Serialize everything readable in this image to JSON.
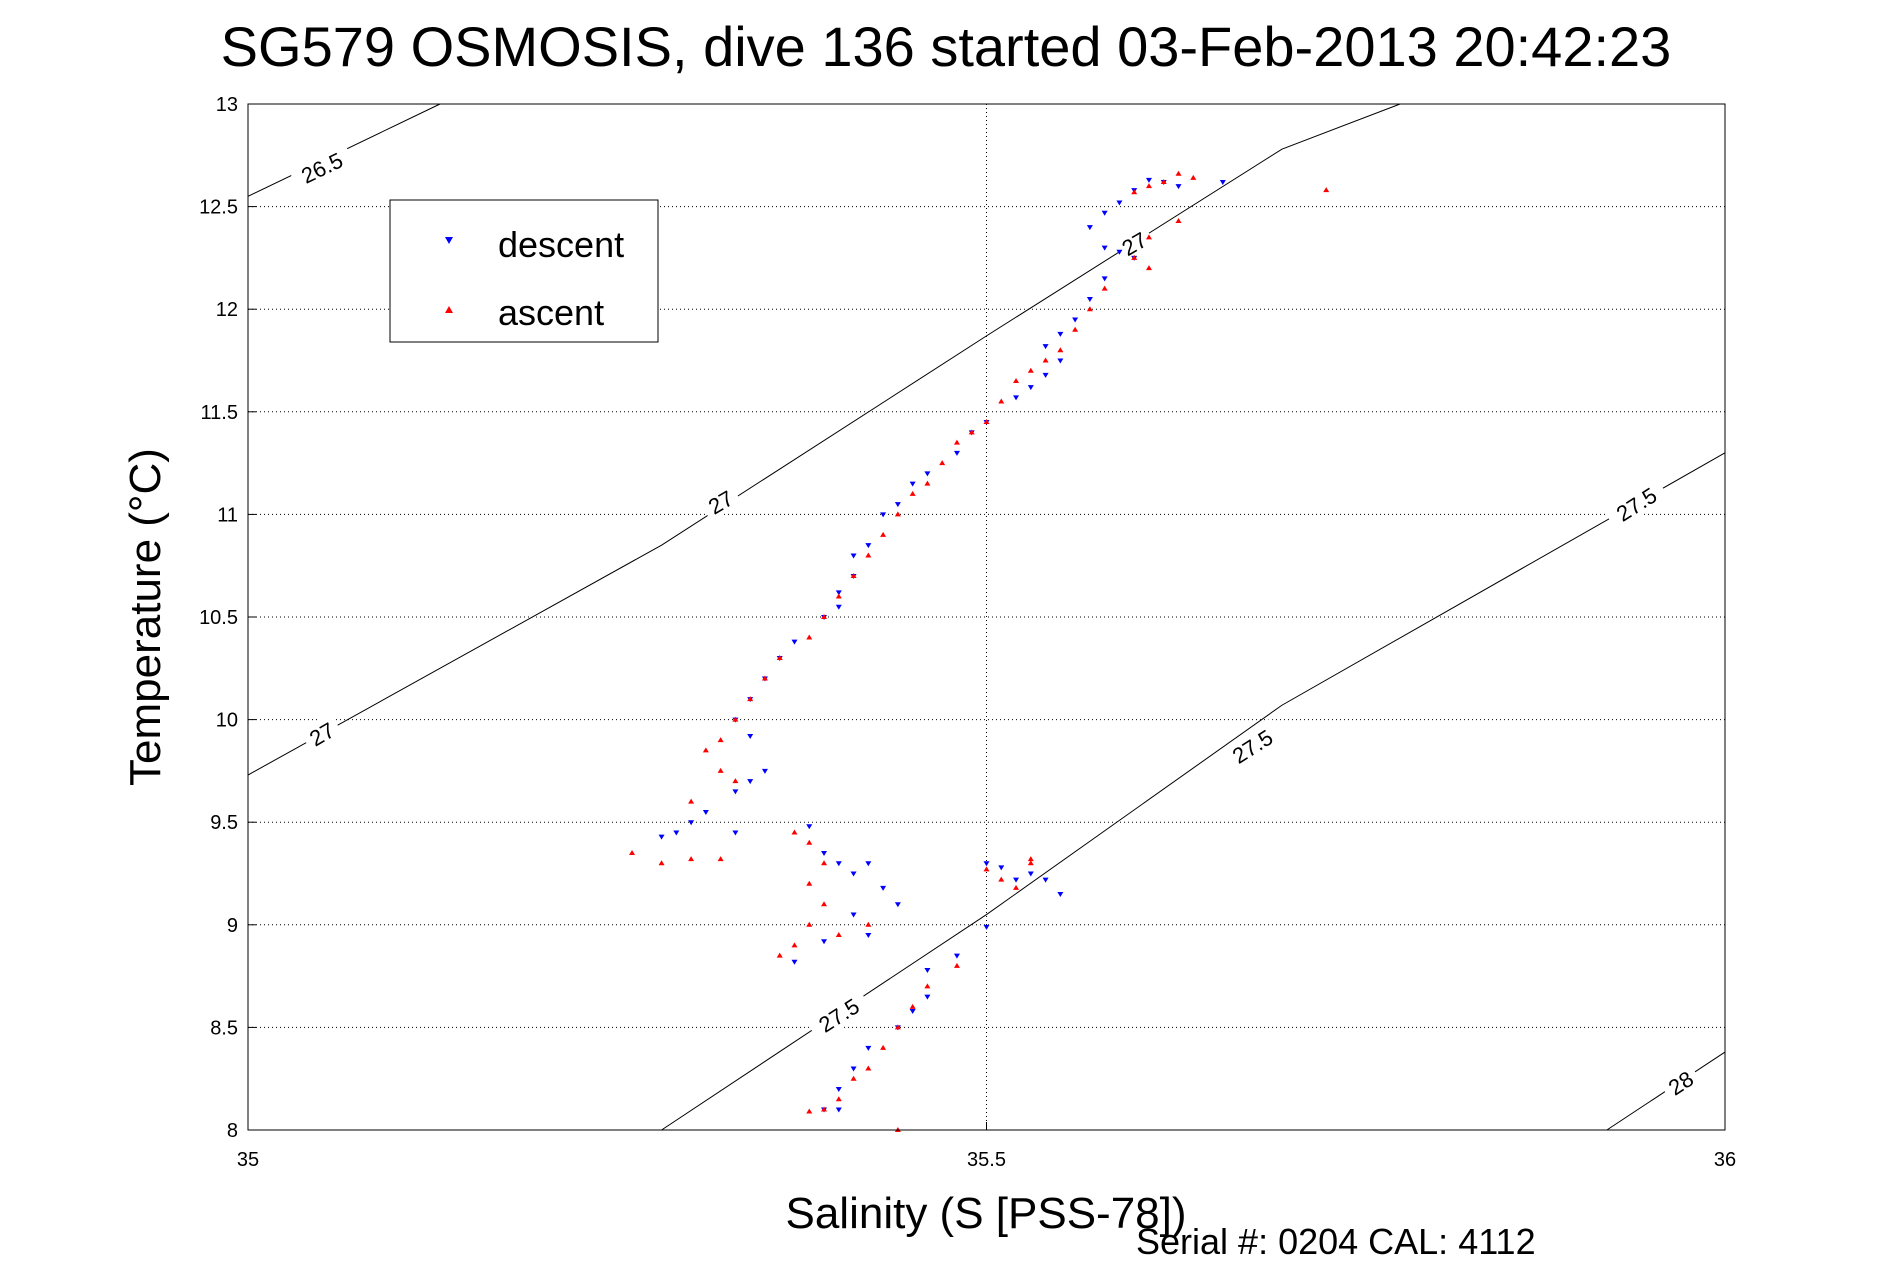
{
  "chart_data": {
    "type": "scatter",
    "title": "SG579 OSMOSIS, dive 136 started 03-Feb-2013 20:42:23",
    "xlabel": "Salinity (S [PSS-78])",
    "ylabel": "Temperature (°C)",
    "footer": "Serial #: 0204  CAL: 4112",
    "xlim": [
      35,
      36
    ],
    "ylim": [
      8,
      13
    ],
    "xticks": [
      "35",
      "35.5",
      "36"
    ],
    "yticks": [
      "8",
      "8.5",
      "9",
      "9.5",
      "10",
      "10.5",
      "11",
      "11.5",
      "12",
      "12.5",
      "13"
    ],
    "grid": "dotted",
    "legend_position": "top-left",
    "density_contours": [
      {
        "sigma": "26.5",
        "points": [
          [
            35.0,
            12.55
          ],
          [
            35.13,
            13.0
          ]
        ],
        "label_points": [
          [
            35.05,
            12.69
          ]
        ]
      },
      {
        "sigma": "27",
        "points": [
          [
            35.0,
            9.73
          ],
          [
            35.28,
            10.85
          ],
          [
            35.5,
            11.87
          ],
          [
            35.7,
            12.78
          ],
          [
            35.78,
            13.0
          ]
        ],
        "label_points": [
          [
            35.05,
            9.93
          ],
          [
            35.32,
            11.06
          ],
          [
            35.6,
            12.32
          ]
        ]
      },
      {
        "sigma": "27.5",
        "points": [
          [
            35.28,
            8.0
          ],
          [
            35.5,
            9.05
          ],
          [
            35.7,
            10.07
          ],
          [
            36.0,
            11.3
          ]
        ],
        "label_points": [
          [
            35.4,
            8.56
          ],
          [
            35.68,
            9.87
          ],
          [
            35.94,
            11.05
          ]
        ]
      },
      {
        "sigma": "28",
        "points": [
          [
            35.92,
            8.0
          ],
          [
            36.0,
            8.38
          ]
        ],
        "label_points": [
          [
            35.97,
            8.23
          ]
        ]
      }
    ],
    "series": [
      {
        "name": "descent",
        "color": "#0000ff",
        "marker": "triangle-down",
        "points": [
          [
            35.61,
            12.63
          ],
          [
            35.62,
            12.62
          ],
          [
            35.63,
            12.6
          ],
          [
            35.6,
            12.58
          ],
          [
            35.59,
            12.52
          ],
          [
            35.58,
            12.47
          ],
          [
            35.66,
            12.62
          ],
          [
            35.57,
            12.4
          ],
          [
            35.58,
            12.3
          ],
          [
            35.59,
            12.28
          ],
          [
            35.6,
            12.25
          ],
          [
            35.58,
            12.15
          ],
          [
            35.57,
            12.05
          ],
          [
            35.56,
            11.95
          ],
          [
            35.55,
            11.88
          ],
          [
            35.54,
            11.82
          ],
          [
            35.55,
            11.75
          ],
          [
            35.54,
            11.68
          ],
          [
            35.53,
            11.62
          ],
          [
            35.52,
            11.57
          ],
          [
            35.5,
            11.45
          ],
          [
            35.49,
            11.4
          ],
          [
            35.48,
            11.3
          ],
          [
            35.46,
            11.2
          ],
          [
            35.45,
            11.15
          ],
          [
            35.44,
            11.05
          ],
          [
            35.43,
            11.0
          ],
          [
            35.42,
            10.85
          ],
          [
            35.41,
            10.8
          ],
          [
            35.41,
            10.7
          ],
          [
            35.4,
            10.62
          ],
          [
            35.4,
            10.55
          ],
          [
            35.39,
            10.5
          ],
          [
            35.37,
            10.38
          ],
          [
            35.36,
            10.3
          ],
          [
            35.35,
            10.2
          ],
          [
            35.34,
            10.1
          ],
          [
            35.33,
            10.0
          ],
          [
            35.34,
            9.92
          ],
          [
            35.35,
            9.75
          ],
          [
            35.34,
            9.7
          ],
          [
            35.33,
            9.65
          ],
          [
            35.31,
            9.55
          ],
          [
            35.3,
            9.5
          ],
          [
            35.29,
            9.45
          ],
          [
            35.28,
            9.43
          ],
          [
            35.33,
            9.45
          ],
          [
            35.38,
            9.48
          ],
          [
            35.39,
            9.35
          ],
          [
            35.4,
            9.3
          ],
          [
            35.41,
            9.25
          ],
          [
            35.42,
            9.3
          ],
          [
            35.43,
            9.18
          ],
          [
            35.44,
            9.1
          ],
          [
            35.41,
            9.05
          ],
          [
            35.42,
            8.95
          ],
          [
            35.39,
            8.92
          ],
          [
            35.37,
            8.82
          ],
          [
            35.48,
            8.85
          ],
          [
            35.46,
            8.78
          ],
          [
            35.46,
            8.65
          ],
          [
            35.45,
            8.58
          ],
          [
            35.44,
            8.5
          ],
          [
            35.42,
            8.4
          ],
          [
            35.41,
            8.3
          ],
          [
            35.4,
            8.2
          ],
          [
            35.4,
            8.1
          ],
          [
            35.39,
            8.1
          ],
          [
            35.5,
            9.3
          ],
          [
            35.51,
            9.28
          ],
          [
            35.52,
            9.22
          ],
          [
            35.54,
            9.22
          ],
          [
            35.55,
            9.15
          ],
          [
            35.5,
            8.99
          ],
          [
            35.53,
            9.25
          ]
        ]
      },
      {
        "name": "ascent",
        "color": "#ff0000",
        "marker": "triangle-up",
        "points": [
          [
            35.63,
            12.66
          ],
          [
            35.64,
            12.64
          ],
          [
            35.62,
            12.62
          ],
          [
            35.61,
            12.6
          ],
          [
            35.6,
            12.57
          ],
          [
            35.73,
            12.58
          ],
          [
            35.63,
            12.43
          ],
          [
            35.61,
            12.35
          ],
          [
            35.6,
            12.25
          ],
          [
            35.61,
            12.2
          ],
          [
            35.58,
            12.1
          ],
          [
            35.57,
            12.0
          ],
          [
            35.56,
            11.9
          ],
          [
            35.55,
            11.8
          ],
          [
            35.54,
            11.75
          ],
          [
            35.53,
            11.7
          ],
          [
            35.52,
            11.65
          ],
          [
            35.51,
            11.55
          ],
          [
            35.5,
            11.45
          ],
          [
            35.49,
            11.4
          ],
          [
            35.48,
            11.35
          ],
          [
            35.47,
            11.25
          ],
          [
            35.46,
            11.15
          ],
          [
            35.45,
            11.1
          ],
          [
            35.44,
            11.0
          ],
          [
            35.43,
            10.9
          ],
          [
            35.42,
            10.8
          ],
          [
            35.41,
            10.7
          ],
          [
            35.4,
            10.6
          ],
          [
            35.39,
            10.5
          ],
          [
            35.38,
            10.4
          ],
          [
            35.36,
            10.3
          ],
          [
            35.35,
            10.2
          ],
          [
            35.34,
            10.1
          ],
          [
            35.33,
            10.0
          ],
          [
            35.32,
            9.9
          ],
          [
            35.31,
            9.85
          ],
          [
            35.32,
            9.75
          ],
          [
            35.33,
            9.7
          ],
          [
            35.3,
            9.6
          ],
          [
            35.26,
            9.35
          ],
          [
            35.28,
            9.3
          ],
          [
            35.3,
            9.32
          ],
          [
            35.32,
            9.32
          ],
          [
            35.37,
            9.45
          ],
          [
            35.38,
            9.4
          ],
          [
            35.39,
            9.3
          ],
          [
            35.38,
            9.2
          ],
          [
            35.39,
            9.1
          ],
          [
            35.38,
            9.0
          ],
          [
            35.37,
            8.9
          ],
          [
            35.36,
            8.85
          ],
          [
            35.4,
            8.95
          ],
          [
            35.42,
            9.0
          ],
          [
            35.48,
            8.8
          ],
          [
            35.46,
            8.7
          ],
          [
            35.45,
            8.6
          ],
          [
            35.44,
            8.5
          ],
          [
            35.43,
            8.4
          ],
          [
            35.42,
            8.3
          ],
          [
            35.41,
            8.25
          ],
          [
            35.4,
            8.15
          ],
          [
            35.39,
            8.1
          ],
          [
            35.38,
            8.09
          ],
          [
            35.44,
            8.0
          ],
          [
            35.51,
            9.22
          ],
          [
            35.52,
            9.18
          ],
          [
            35.53,
            9.3
          ],
          [
            35.53,
            9.32
          ],
          [
            35.5,
            9.27
          ]
        ]
      }
    ]
  }
}
